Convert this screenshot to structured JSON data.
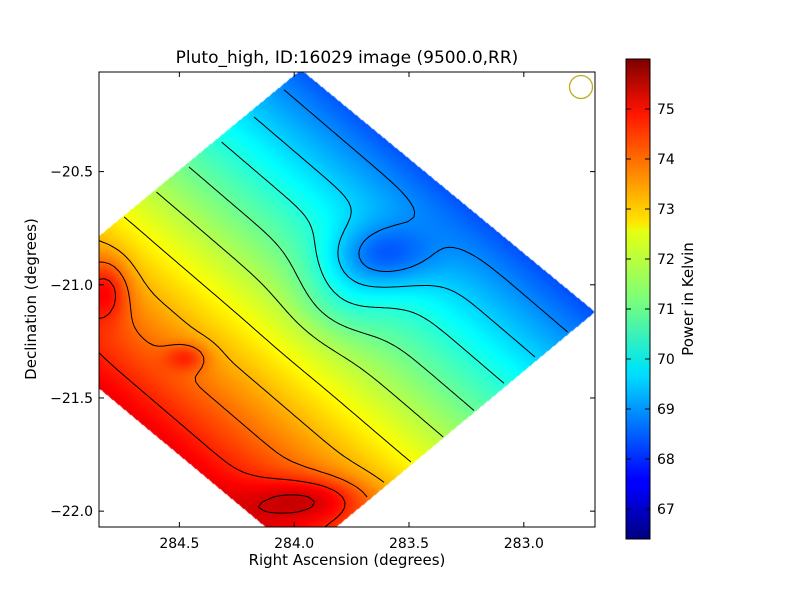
{
  "chart_data": {
    "type": "heatmap",
    "title": "Pluto_high, ID:16029 image (9500.0,RR)",
    "xlabel": "Right Ascension (degrees)",
    "ylabel": "Declination (degrees)",
    "colorbar_label": "Power in Kelvin",
    "x_axis_inverted": true,
    "xlim": [
      284.85,
      282.69
    ],
    "ylim": [
      -22.07,
      -20.06
    ],
    "x_ticks": [
      {
        "value": 284.5,
        "label": "284.5"
      },
      {
        "value": 284.0,
        "label": "284.0"
      },
      {
        "value": 283.5,
        "label": "283.5"
      },
      {
        "value": 283.0,
        "label": "283.0"
      }
    ],
    "y_ticks": [
      {
        "value": -20.5,
        "label": "−20.5"
      },
      {
        "value": -21.0,
        "label": "−21.0"
      },
      {
        "value": -21.5,
        "label": "−21.5"
      },
      {
        "value": -22.0,
        "label": "−22.0"
      }
    ],
    "colorbar_range": [
      66.4,
      76.0
    ],
    "colorbar_ticks": [
      {
        "value": 67,
        "label": "67"
      },
      {
        "value": 68,
        "label": "68"
      },
      {
        "value": 69,
        "label": "69"
      },
      {
        "value": 70,
        "label": "70"
      },
      {
        "value": 71,
        "label": "71"
      },
      {
        "value": 72,
        "label": "72"
      },
      {
        "value": 73,
        "label": "73"
      },
      {
        "value": 74,
        "label": "74"
      },
      {
        "value": 75,
        "label": "75"
      }
    ],
    "colormap": "jet",
    "contour_color": "#000000",
    "beam_color": "#bcb020",
    "footprint": {
      "shape": "diamond",
      "vertices_ra_dec": [
        [
          283.97,
          -20.05
        ],
        [
          282.69,
          -21.12
        ],
        [
          283.97,
          -22.2
        ],
        [
          285.25,
          -21.12
        ]
      ]
    },
    "field_model": {
      "description_values": "power increases from upper-right (about 66.5 K) to lower-left (about 75.8 K)",
      "min": 66.5,
      "max": 75.8
    },
    "contour_levels": [
      67.5,
      68.2,
      68.9,
      69.6,
      70.3,
      71.0,
      71.7,
      72.4,
      73.1,
      73.8,
      74.5,
      75.2
    ]
  }
}
